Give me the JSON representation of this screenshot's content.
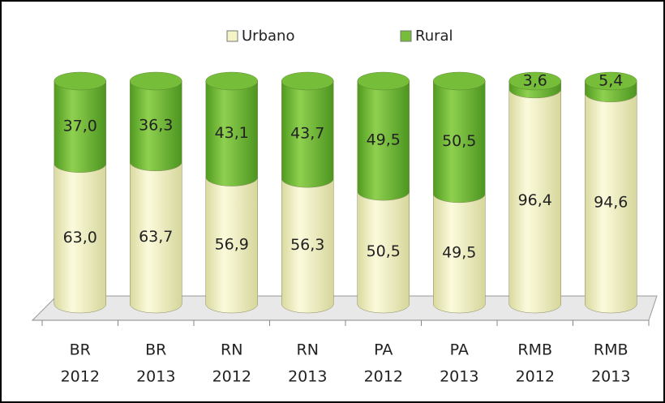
{
  "chart_data": {
    "type": "stacked_cylinder",
    "categories": [
      [
        "BR",
        "2012"
      ],
      [
        "BR",
        "2013"
      ],
      [
        "RN",
        "2012"
      ],
      [
        "RN",
        "2013"
      ],
      [
        "PA",
        "2012"
      ],
      [
        "PA",
        "2013"
      ],
      [
        "RMB",
        "2012"
      ],
      [
        "RMB",
        "2013"
      ]
    ],
    "series": [
      {
        "name": "Urbano",
        "color": "#f4f4c6",
        "values": [
          63.0,
          63.7,
          56.9,
          56.3,
          50.5,
          49.5,
          96.4,
          94.6
        ],
        "value_labels": [
          "63,0",
          "63,7",
          "56,9",
          "56,3",
          "50,5",
          "49,5",
          "96,4",
          "94,6"
        ]
      },
      {
        "name": "Rural",
        "color": "#76bd3a",
        "values": [
          37.0,
          36.3,
          43.1,
          43.7,
          49.5,
          50.5,
          3.6,
          5.4
        ],
        "value_labels": [
          "37,0",
          "36,3",
          "43,1",
          "43,7",
          "49,5",
          "50,5",
          "3,6",
          "5,4"
        ]
      }
    ],
    "ylim": [
      0,
      100
    ],
    "legend": "top"
  }
}
